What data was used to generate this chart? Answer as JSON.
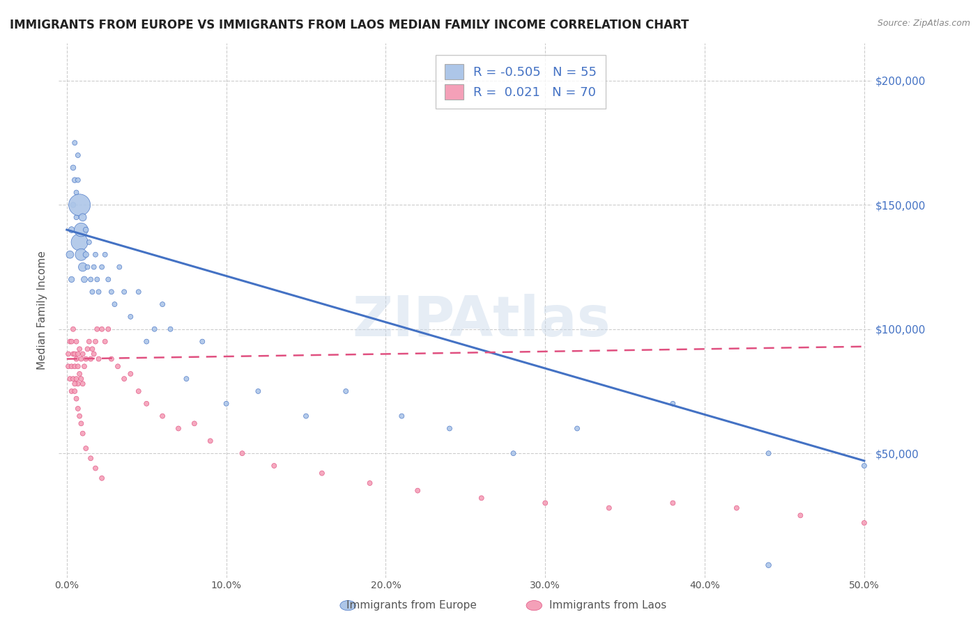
{
  "title": "IMMIGRANTS FROM EUROPE VS IMMIGRANTS FROM LAOS MEDIAN FAMILY INCOME CORRELATION CHART",
  "source": "Source: ZipAtlas.com",
  "ylabel": "Median Family Income",
  "xlim": [
    -0.005,
    0.505
  ],
  "ylim": [
    0,
    215000
  ],
  "yticks": [
    50000,
    100000,
    150000,
    200000
  ],
  "ytick_labels": [
    "$50,000",
    "$100,000",
    "$150,000",
    "$200,000"
  ],
  "xticks": [
    0.0,
    0.1,
    0.2,
    0.3,
    0.4,
    0.5
  ],
  "xtick_labels": [
    "0.0%",
    "10.0%",
    "20.0%",
    "30.0%",
    "40.0%",
    "50.0%"
  ],
  "europe_R": -0.505,
  "europe_N": 55,
  "laos_R": 0.021,
  "laos_N": 70,
  "europe_color": "#adc6e8",
  "laos_color": "#f4a0b8",
  "europe_line_color": "#4472c4",
  "laos_line_color": "#e05080",
  "watermark": "ZIPAtlas",
  "europe_x": [
    0.002,
    0.003,
    0.003,
    0.004,
    0.004,
    0.005,
    0.005,
    0.006,
    0.006,
    0.007,
    0.007,
    0.008,
    0.008,
    0.009,
    0.009,
    0.01,
    0.01,
    0.011,
    0.012,
    0.012,
    0.013,
    0.014,
    0.015,
    0.016,
    0.017,
    0.018,
    0.019,
    0.02,
    0.022,
    0.024,
    0.026,
    0.028,
    0.03,
    0.033,
    0.036,
    0.04,
    0.045,
    0.05,
    0.055,
    0.06,
    0.065,
    0.075,
    0.085,
    0.1,
    0.12,
    0.15,
    0.175,
    0.21,
    0.24,
    0.28,
    0.32,
    0.38,
    0.44,
    0.5,
    0.44
  ],
  "europe_y": [
    130000,
    140000,
    120000,
    150000,
    165000,
    160000,
    175000,
    155000,
    145000,
    170000,
    160000,
    150000,
    135000,
    140000,
    130000,
    125000,
    145000,
    120000,
    130000,
    140000,
    125000,
    135000,
    120000,
    115000,
    125000,
    130000,
    120000,
    115000,
    125000,
    130000,
    120000,
    115000,
    110000,
    125000,
    115000,
    105000,
    115000,
    95000,
    100000,
    110000,
    100000,
    80000,
    95000,
    70000,
    75000,
    65000,
    75000,
    65000,
    60000,
    50000,
    60000,
    70000,
    50000,
    45000,
    5000
  ],
  "europe_size": [
    60,
    40,
    35,
    30,
    30,
    30,
    25,
    25,
    25,
    25,
    25,
    500,
    300,
    200,
    150,
    80,
    60,
    40,
    35,
    30,
    25,
    25,
    25,
    25,
    25,
    25,
    25,
    25,
    25,
    25,
    25,
    25,
    25,
    25,
    25,
    25,
    25,
    25,
    25,
    25,
    25,
    25,
    25,
    25,
    25,
    25,
    25,
    25,
    25,
    25,
    25,
    25,
    25,
    25,
    30
  ],
  "laos_x": [
    0.001,
    0.001,
    0.002,
    0.002,
    0.003,
    0.003,
    0.003,
    0.004,
    0.004,
    0.004,
    0.005,
    0.005,
    0.005,
    0.006,
    0.006,
    0.006,
    0.007,
    0.007,
    0.007,
    0.008,
    0.008,
    0.009,
    0.009,
    0.01,
    0.01,
    0.011,
    0.012,
    0.013,
    0.014,
    0.015,
    0.016,
    0.017,
    0.018,
    0.019,
    0.02,
    0.022,
    0.024,
    0.026,
    0.028,
    0.032,
    0.036,
    0.04,
    0.045,
    0.05,
    0.06,
    0.07,
    0.08,
    0.09,
    0.11,
    0.13,
    0.16,
    0.19,
    0.22,
    0.26,
    0.3,
    0.34,
    0.38,
    0.42,
    0.46,
    0.5,
    0.005,
    0.006,
    0.007,
    0.008,
    0.009,
    0.01,
    0.012,
    0.015,
    0.018,
    0.022
  ],
  "laos_y": [
    85000,
    90000,
    80000,
    95000,
    75000,
    85000,
    95000,
    80000,
    90000,
    100000,
    75000,
    85000,
    90000,
    80000,
    88000,
    95000,
    78000,
    85000,
    90000,
    82000,
    92000,
    80000,
    88000,
    78000,
    90000,
    85000,
    88000,
    92000,
    95000,
    88000,
    92000,
    90000,
    95000,
    100000,
    88000,
    100000,
    95000,
    100000,
    88000,
    85000,
    80000,
    82000,
    75000,
    70000,
    65000,
    60000,
    62000,
    55000,
    50000,
    45000,
    42000,
    38000,
    35000,
    32000,
    30000,
    28000,
    30000,
    28000,
    25000,
    22000,
    78000,
    72000,
    68000,
    65000,
    62000,
    58000,
    52000,
    48000,
    44000,
    40000
  ],
  "laos_size": [
    25,
    25,
    25,
    25,
    25,
    25,
    25,
    25,
    25,
    25,
    25,
    25,
    25,
    25,
    25,
    25,
    25,
    25,
    25,
    25,
    25,
    25,
    25,
    25,
    25,
    25,
    25,
    25,
    25,
    25,
    25,
    25,
    25,
    25,
    25,
    25,
    25,
    25,
    25,
    25,
    25,
    25,
    25,
    25,
    25,
    25,
    25,
    25,
    25,
    25,
    25,
    25,
    25,
    25,
    25,
    25,
    25,
    25,
    25,
    25,
    25,
    25,
    25,
    25,
    25,
    25,
    25,
    25,
    25,
    25
  ],
  "europe_trend_x": [
    0.0,
    0.5
  ],
  "europe_trend_y": [
    140000,
    47000
  ],
  "laos_trend_x": [
    0.0,
    0.5
  ],
  "laos_trend_y": [
    88000,
    93000
  ]
}
